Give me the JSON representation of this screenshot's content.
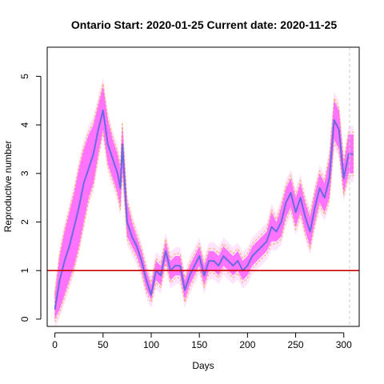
{
  "chart_data": {
    "type": "line",
    "title": "Ontario Start:  2020-01-25   Current date:  2020-11-25",
    "xlabel": "Days",
    "ylabel": "Reproductive number",
    "xlim": [
      -8,
      316
    ],
    "ylim": [
      -0.15,
      5.6
    ],
    "xticks": [
      0,
      50,
      100,
      150,
      200,
      250,
      300
    ],
    "yticks": [
      0,
      1,
      2,
      3,
      4,
      5
    ],
    "reference_line": {
      "y": 1,
      "color": "#cc0000"
    },
    "current_day_marker": {
      "x": 306,
      "color": "#cccccc"
    },
    "colors": {
      "median": "#6a6ae0",
      "band": "#ff66ff",
      "outer_band": "#ffb3ff",
      "border": "#ff9933"
    },
    "series": [
      {
        "name": "",
        "x": [
          0,
          5,
          10,
          15,
          20,
          25,
          30,
          35,
          40,
          45,
          50,
          55,
          60,
          65,
          68,
          70,
          75,
          80,
          85,
          90,
          95,
          100,
          105,
          110,
          115,
          120,
          125,
          130,
          135,
          140,
          145,
          150,
          155,
          160,
          165,
          170,
          175,
          180,
          185,
          190,
          195,
          200,
          205,
          210,
          215,
          220,
          225,
          230,
          235,
          240,
          245,
          250,
          255,
          260,
          265,
          270,
          275,
          280,
          285,
          290,
          295,
          300,
          305,
          310
        ],
        "y": [
          0.2,
          0.8,
          1.2,
          1.5,
          1.9,
          2.3,
          2.8,
          3.1,
          3.4,
          3.9,
          4.3,
          3.6,
          3.3,
          3.0,
          2.7,
          3.6,
          2.0,
          1.7,
          1.5,
          1.2,
          0.8,
          0.5,
          1.0,
          0.9,
          1.4,
          1.0,
          1.1,
          1.1,
          0.6,
          0.9,
          1.1,
          1.3,
          0.9,
          1.2,
          1.2,
          1.1,
          1.3,
          1.2,
          1.1,
          1.2,
          1.0,
          1.1,
          1.3,
          1.4,
          1.5,
          1.6,
          1.9,
          1.8,
          2.0,
          2.4,
          2.6,
          2.2,
          2.5,
          2.1,
          1.8,
          2.3,
          2.7,
          2.5,
          2.9,
          4.1,
          3.9,
          2.9,
          3.4,
          3.4
        ],
        "lower": [
          0.0,
          0.2,
          0.5,
          0.8,
          1.1,
          1.5,
          2.0,
          2.5,
          2.8,
          3.4,
          3.9,
          3.2,
          2.9,
          2.6,
          2.3,
          3.1,
          1.7,
          1.5,
          1.3,
          1.0,
          0.6,
          0.4,
          0.8,
          0.7,
          1.2,
          0.8,
          0.9,
          0.9,
          0.4,
          0.7,
          0.9,
          1.1,
          0.7,
          1.0,
          1.0,
          0.9,
          1.1,
          1.0,
          0.9,
          1.0,
          0.8,
          0.9,
          1.1,
          1.2,
          1.3,
          1.4,
          1.6,
          1.6,
          1.7,
          2.1,
          2.3,
          1.9,
          2.2,
          1.8,
          1.5,
          2.0,
          2.4,
          2.2,
          2.5,
          3.7,
          3.5,
          2.6,
          3.0,
          3.0
        ],
        "upper": [
          0.5,
          1.3,
          1.8,
          2.2,
          2.6,
          3.1,
          3.5,
          3.8,
          4.0,
          4.4,
          4.8,
          4.1,
          3.7,
          3.4,
          3.1,
          4.0,
          2.4,
          2.0,
          1.7,
          1.4,
          1.0,
          0.7,
          1.2,
          1.1,
          1.6,
          1.2,
          1.3,
          1.3,
          0.8,
          1.1,
          1.3,
          1.5,
          1.1,
          1.4,
          1.4,
          1.3,
          1.5,
          1.4,
          1.3,
          1.4,
          1.2,
          1.3,
          1.5,
          1.6,
          1.7,
          1.8,
          2.2,
          2.0,
          2.3,
          2.7,
          2.9,
          2.5,
          2.8,
          2.4,
          2.1,
          2.6,
          3.0,
          2.8,
          3.3,
          4.5,
          4.3,
          3.2,
          3.8,
          3.8
        ]
      }
    ],
    "grid": false,
    "legend": "none"
  }
}
